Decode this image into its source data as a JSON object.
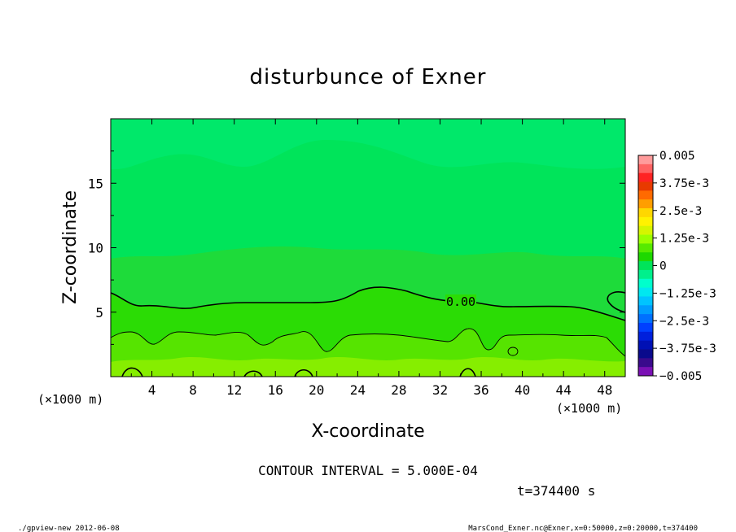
{
  "chart_data": {
    "type": "contour",
    "title": "disturbunce of Exner",
    "xlabel": "X-coordinate",
    "ylabel": "Z-coordinate",
    "x_unit": "(×1000 m)",
    "z_unit": "(×1000 m)",
    "xlim": [
      0,
      50
    ],
    "ylim": [
      0,
      20
    ],
    "x_ticks": [
      4,
      8,
      12,
      16,
      20,
      24,
      28,
      32,
      36,
      40,
      44,
      48
    ],
    "x_tick_labels": [
      "4",
      "8",
      "12",
      "16",
      "20",
      "24",
      "28",
      "32",
      "36",
      "40",
      "44",
      "48"
    ],
    "y_ticks": [
      5,
      10,
      15
    ],
    "y_tick_labels": [
      "5",
      "10",
      "15"
    ],
    "contour_label": "0.00",
    "colorbar": {
      "labels": [
        "0.005",
        "3.75e-3",
        "2.5e-3",
        "1.25e-3",
        "0",
        "−1.25e-3",
        "−2.5e-3",
        "−3.75e-3",
        "−0.005"
      ],
      "colors": [
        "#ff9b9b",
        "#ff6262",
        "#ff2323",
        "#e83a00",
        "#ff6a00",
        "#ff9e00",
        "#ffd700",
        "#fff200",
        "#d5f500",
        "#9bff00",
        "#56ea00",
        "#1ed800",
        "#00e45a",
        "#00f08c",
        "#00ffcc",
        "#00e8f0",
        "#00c4ff",
        "#009cff",
        "#0070ff",
        "#0040ff",
        "#0020dc",
        "#0010b4",
        "#0a0a8c",
        "#3a0a8c",
        "#7a10b4"
      ]
    },
    "contour_interval_text": "CONTOUR INTERVAL = 5.000E-04",
    "time_text": "t=374400 s"
  },
  "footer": {
    "left": "./gpview-new   2012-06-08",
    "right": "MarsCond_Exner.nc@Exner,x=0:50000,z=0:20000,t=374400"
  }
}
